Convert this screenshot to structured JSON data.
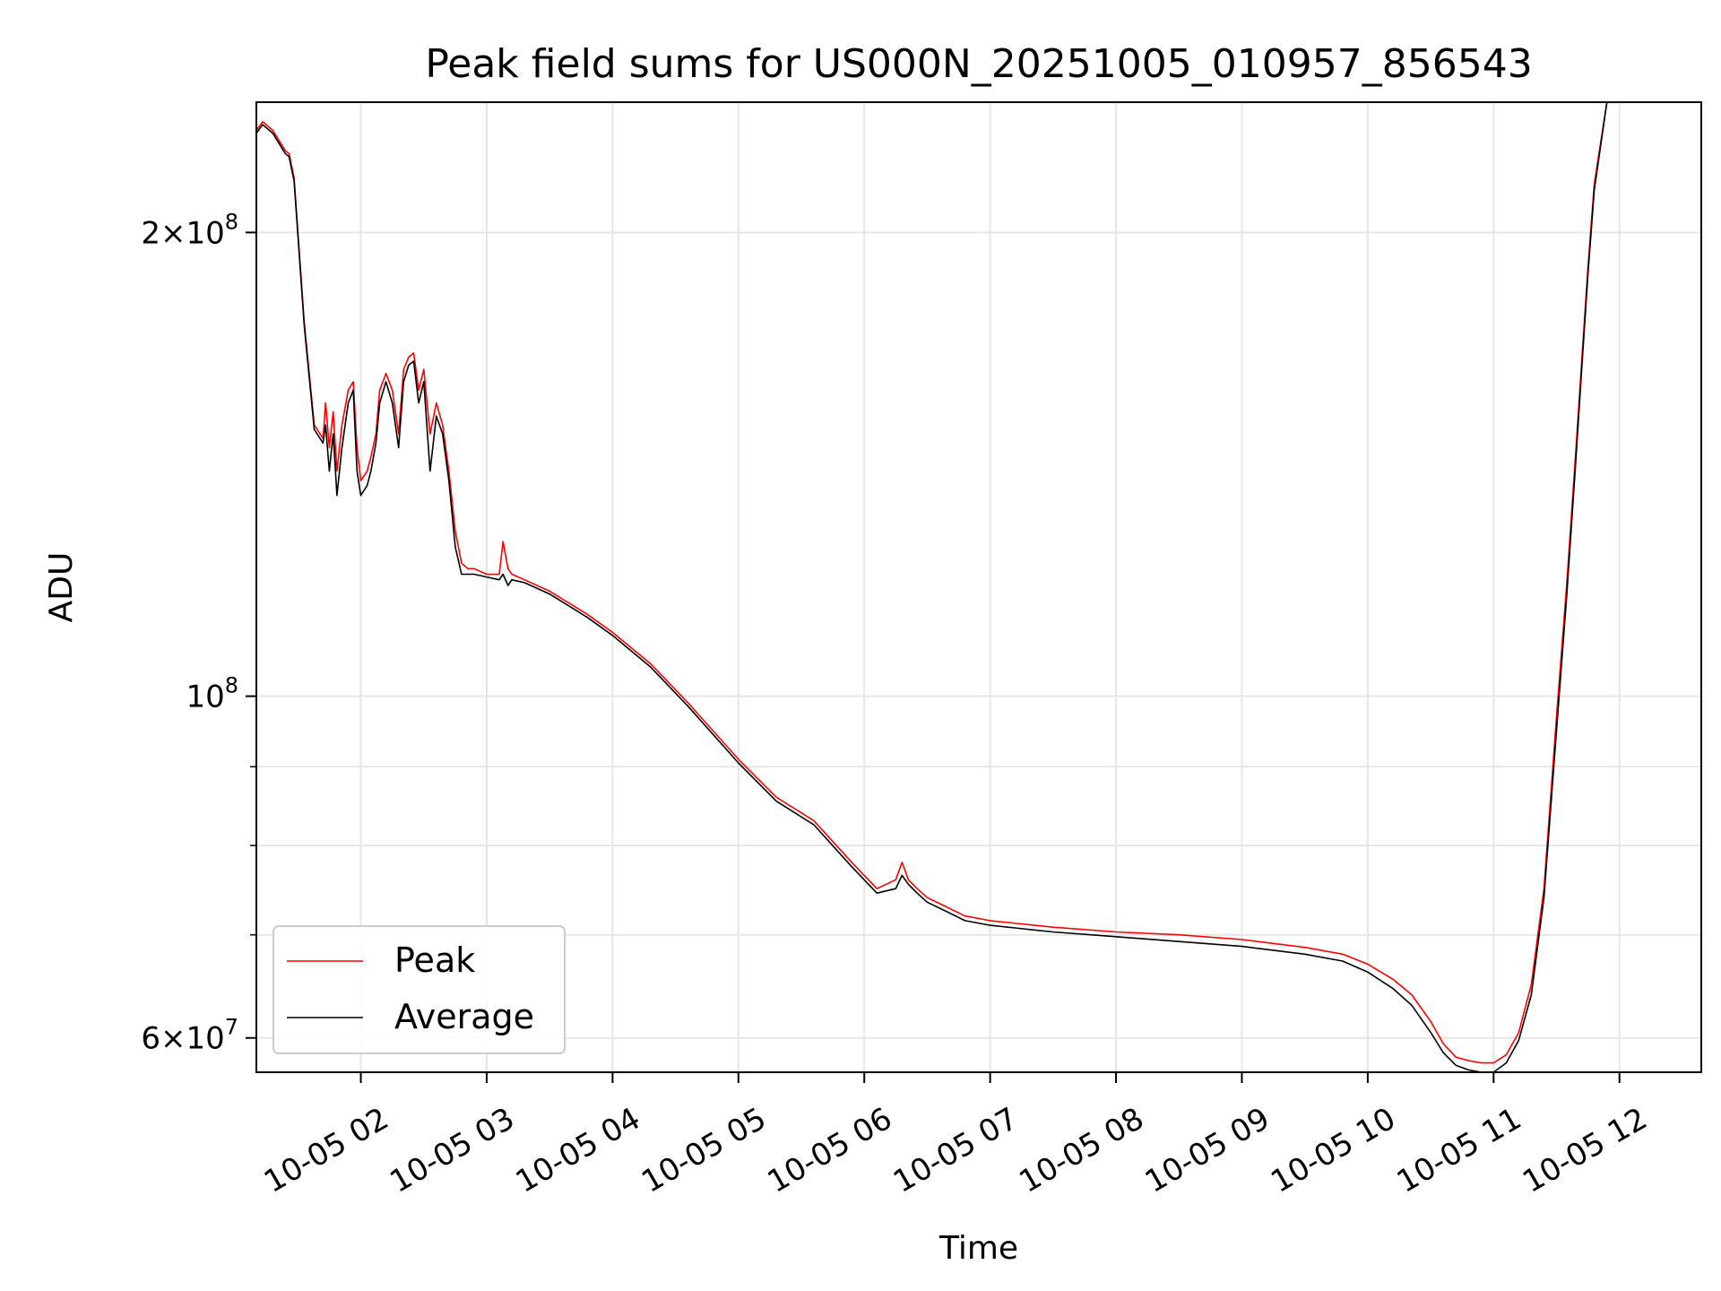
{
  "chart_data": {
    "type": "line",
    "title": "Peak field sums for US000N_20251005_010957_856543",
    "xlabel": "Time",
    "ylabel": "ADU",
    "y_scale": "log",
    "ylim": [
      57000000,
      243000000
    ],
    "xlim": [
      1.17,
      12.65
    ],
    "grid": true,
    "legend_position": "lower-left",
    "x_ticks": [
      {
        "value": 2,
        "label": "10-05 02"
      },
      {
        "value": 3,
        "label": "10-05 03"
      },
      {
        "value": 4,
        "label": "10-05 04"
      },
      {
        "value": 5,
        "label": "10-05 05"
      },
      {
        "value": 6,
        "label": "10-05 06"
      },
      {
        "value": 7,
        "label": "10-05 07"
      },
      {
        "value": 8,
        "label": "10-05 08"
      },
      {
        "value": 9,
        "label": "10-05 09"
      },
      {
        "value": 10,
        "label": "10-05 10"
      },
      {
        "value": 11,
        "label": "10-05 11"
      },
      {
        "value": 12,
        "label": "10-05 12"
      }
    ],
    "y_ticks_major": [
      {
        "value": 60000000,
        "base": "6×10",
        "exp": "7"
      },
      {
        "value": 100000000,
        "base": "10",
        "exp": "8"
      },
      {
        "value": 200000000,
        "base": "2×10",
        "exp": "8"
      }
    ],
    "y_ticks_minor": [
      70000000,
      80000000,
      90000000
    ],
    "series": [
      {
        "name": "Peak",
        "color": "#ff0000",
        "x": [
          1.17,
          1.22,
          1.3,
          1.4,
          1.43,
          1.47,
          1.55,
          1.63,
          1.7,
          1.72,
          1.75,
          1.78,
          1.81,
          1.85,
          1.9,
          1.94,
          1.97,
          2.0,
          2.05,
          2.08,
          2.12,
          2.15,
          2.2,
          2.25,
          2.3,
          2.34,
          2.38,
          2.42,
          2.46,
          2.5,
          2.55,
          2.6,
          2.65,
          2.7,
          2.75,
          2.8,
          2.85,
          2.9,
          3.0,
          3.1,
          3.13,
          3.17,
          3.2,
          3.3,
          3.5,
          3.8,
          4.0,
          4.3,
          4.6,
          5.0,
          5.3,
          5.6,
          5.9,
          6.1,
          6.25,
          6.3,
          6.35,
          6.42,
          6.5,
          6.65,
          6.8,
          7.0,
          7.5,
          8.0,
          8.5,
          9.0,
          9.5,
          9.8,
          10.0,
          10.2,
          10.35,
          10.5,
          10.6,
          10.7,
          10.8,
          10.9,
          11.0,
          11.1,
          11.2,
          11.3,
          11.4,
          11.5,
          11.58,
          11.65,
          11.7,
          11.75,
          11.8,
          11.9,
          12.0,
          12.1,
          12.17,
          12.25,
          12.32,
          12.4,
          12.46,
          12.5
        ],
        "y": [
          233000000,
          236000000,
          233000000,
          226000000,
          225000000,
          217000000,
          175000000,
          150000000,
          147000000,
          155000000,
          145000000,
          153000000,
          140000000,
          150000000,
          158000000,
          160000000,
          145000000,
          138000000,
          140000000,
          143000000,
          148000000,
          158000000,
          162000000,
          158000000,
          148000000,
          163000000,
          166000000,
          167000000,
          158000000,
          163000000,
          148000000,
          155000000,
          150000000,
          140000000,
          128000000,
          122000000,
          121000000,
          121000000,
          120000000,
          120000000,
          126000000,
          121000000,
          120000000,
          119000000,
          117000000,
          113000000,
          110000000,
          105000000,
          99000000,
          91000000,
          86000000,
          83000000,
          78000000,
          75000000,
          76000000,
          78000000,
          76000000,
          75000000,
          74000000,
          73000000,
          72000000,
          71500000,
          70800000,
          70300000,
          70000000,
          69500000,
          68700000,
          68000000,
          67000000,
          65500000,
          64000000,
          61500000,
          59500000,
          58300000,
          58000000,
          57800000,
          57800000,
          58500000,
          60500000,
          65000000,
          75000000,
          97000000,
          118000000,
          143000000,
          165000000,
          190000000,
          215000000,
          243000000,
          243000000,
          243000000,
          243000000,
          243000000,
          243000000,
          243000000,
          243000000,
          243000000
        ]
      },
      {
        "name": "Average",
        "color": "#000000",
        "x": [
          1.17,
          1.22,
          1.3,
          1.4,
          1.43,
          1.47,
          1.55,
          1.63,
          1.7,
          1.72,
          1.75,
          1.78,
          1.81,
          1.85,
          1.9,
          1.94,
          1.97,
          2.0,
          2.05,
          2.08,
          2.12,
          2.15,
          2.2,
          2.25,
          2.3,
          2.34,
          2.38,
          2.42,
          2.46,
          2.5,
          2.55,
          2.6,
          2.65,
          2.7,
          2.75,
          2.8,
          2.85,
          2.9,
          3.0,
          3.1,
          3.13,
          3.17,
          3.2,
          3.3,
          3.5,
          3.8,
          4.0,
          4.3,
          4.6,
          5.0,
          5.3,
          5.6,
          5.9,
          6.1,
          6.25,
          6.3,
          6.35,
          6.42,
          6.5,
          6.65,
          6.8,
          7.0,
          7.5,
          8.0,
          8.5,
          9.0,
          9.5,
          9.8,
          10.0,
          10.2,
          10.35,
          10.5,
          10.6,
          10.7,
          10.8,
          10.9,
          11.0,
          11.1,
          11.2,
          11.3,
          11.4,
          11.5,
          11.58,
          11.65,
          11.7,
          11.75,
          11.8,
          11.9,
          12.0,
          12.1,
          12.17,
          12.25,
          12.32,
          12.4,
          12.46,
          12.5
        ],
        "y": [
          232000000,
          235000000,
          232000000,
          225000000,
          224000000,
          216000000,
          174000000,
          149000000,
          146000000,
          150000000,
          140000000,
          148000000,
          135000000,
          145000000,
          155000000,
          158000000,
          140000000,
          135000000,
          137000000,
          140000000,
          146000000,
          155000000,
          160000000,
          155000000,
          145000000,
          160000000,
          164000000,
          165000000,
          155000000,
          160000000,
          140000000,
          152000000,
          148000000,
          138000000,
          125000000,
          120000000,
          120000000,
          120000000,
          119500000,
          119000000,
          120000000,
          118000000,
          119000000,
          118500000,
          116500000,
          112500000,
          109500000,
          104500000,
          98500000,
          90500000,
          85500000,
          82500000,
          77500000,
          74500000,
          75000000,
          76500000,
          75500000,
          74500000,
          73500000,
          72500000,
          71500000,
          71000000,
          70300000,
          69800000,
          69300000,
          68800000,
          68000000,
          67300000,
          66200000,
          64600000,
          63000000,
          60500000,
          58700000,
          57600000,
          57200000,
          57000000,
          57000000,
          57800000,
          59800000,
          64000000,
          74000000,
          95000000,
          116000000,
          141000000,
          163000000,
          188000000,
          213000000,
          243000000,
          243000000,
          243000000,
          243000000,
          243000000,
          243000000,
          243000000,
          243000000,
          243000000
        ]
      }
    ]
  }
}
